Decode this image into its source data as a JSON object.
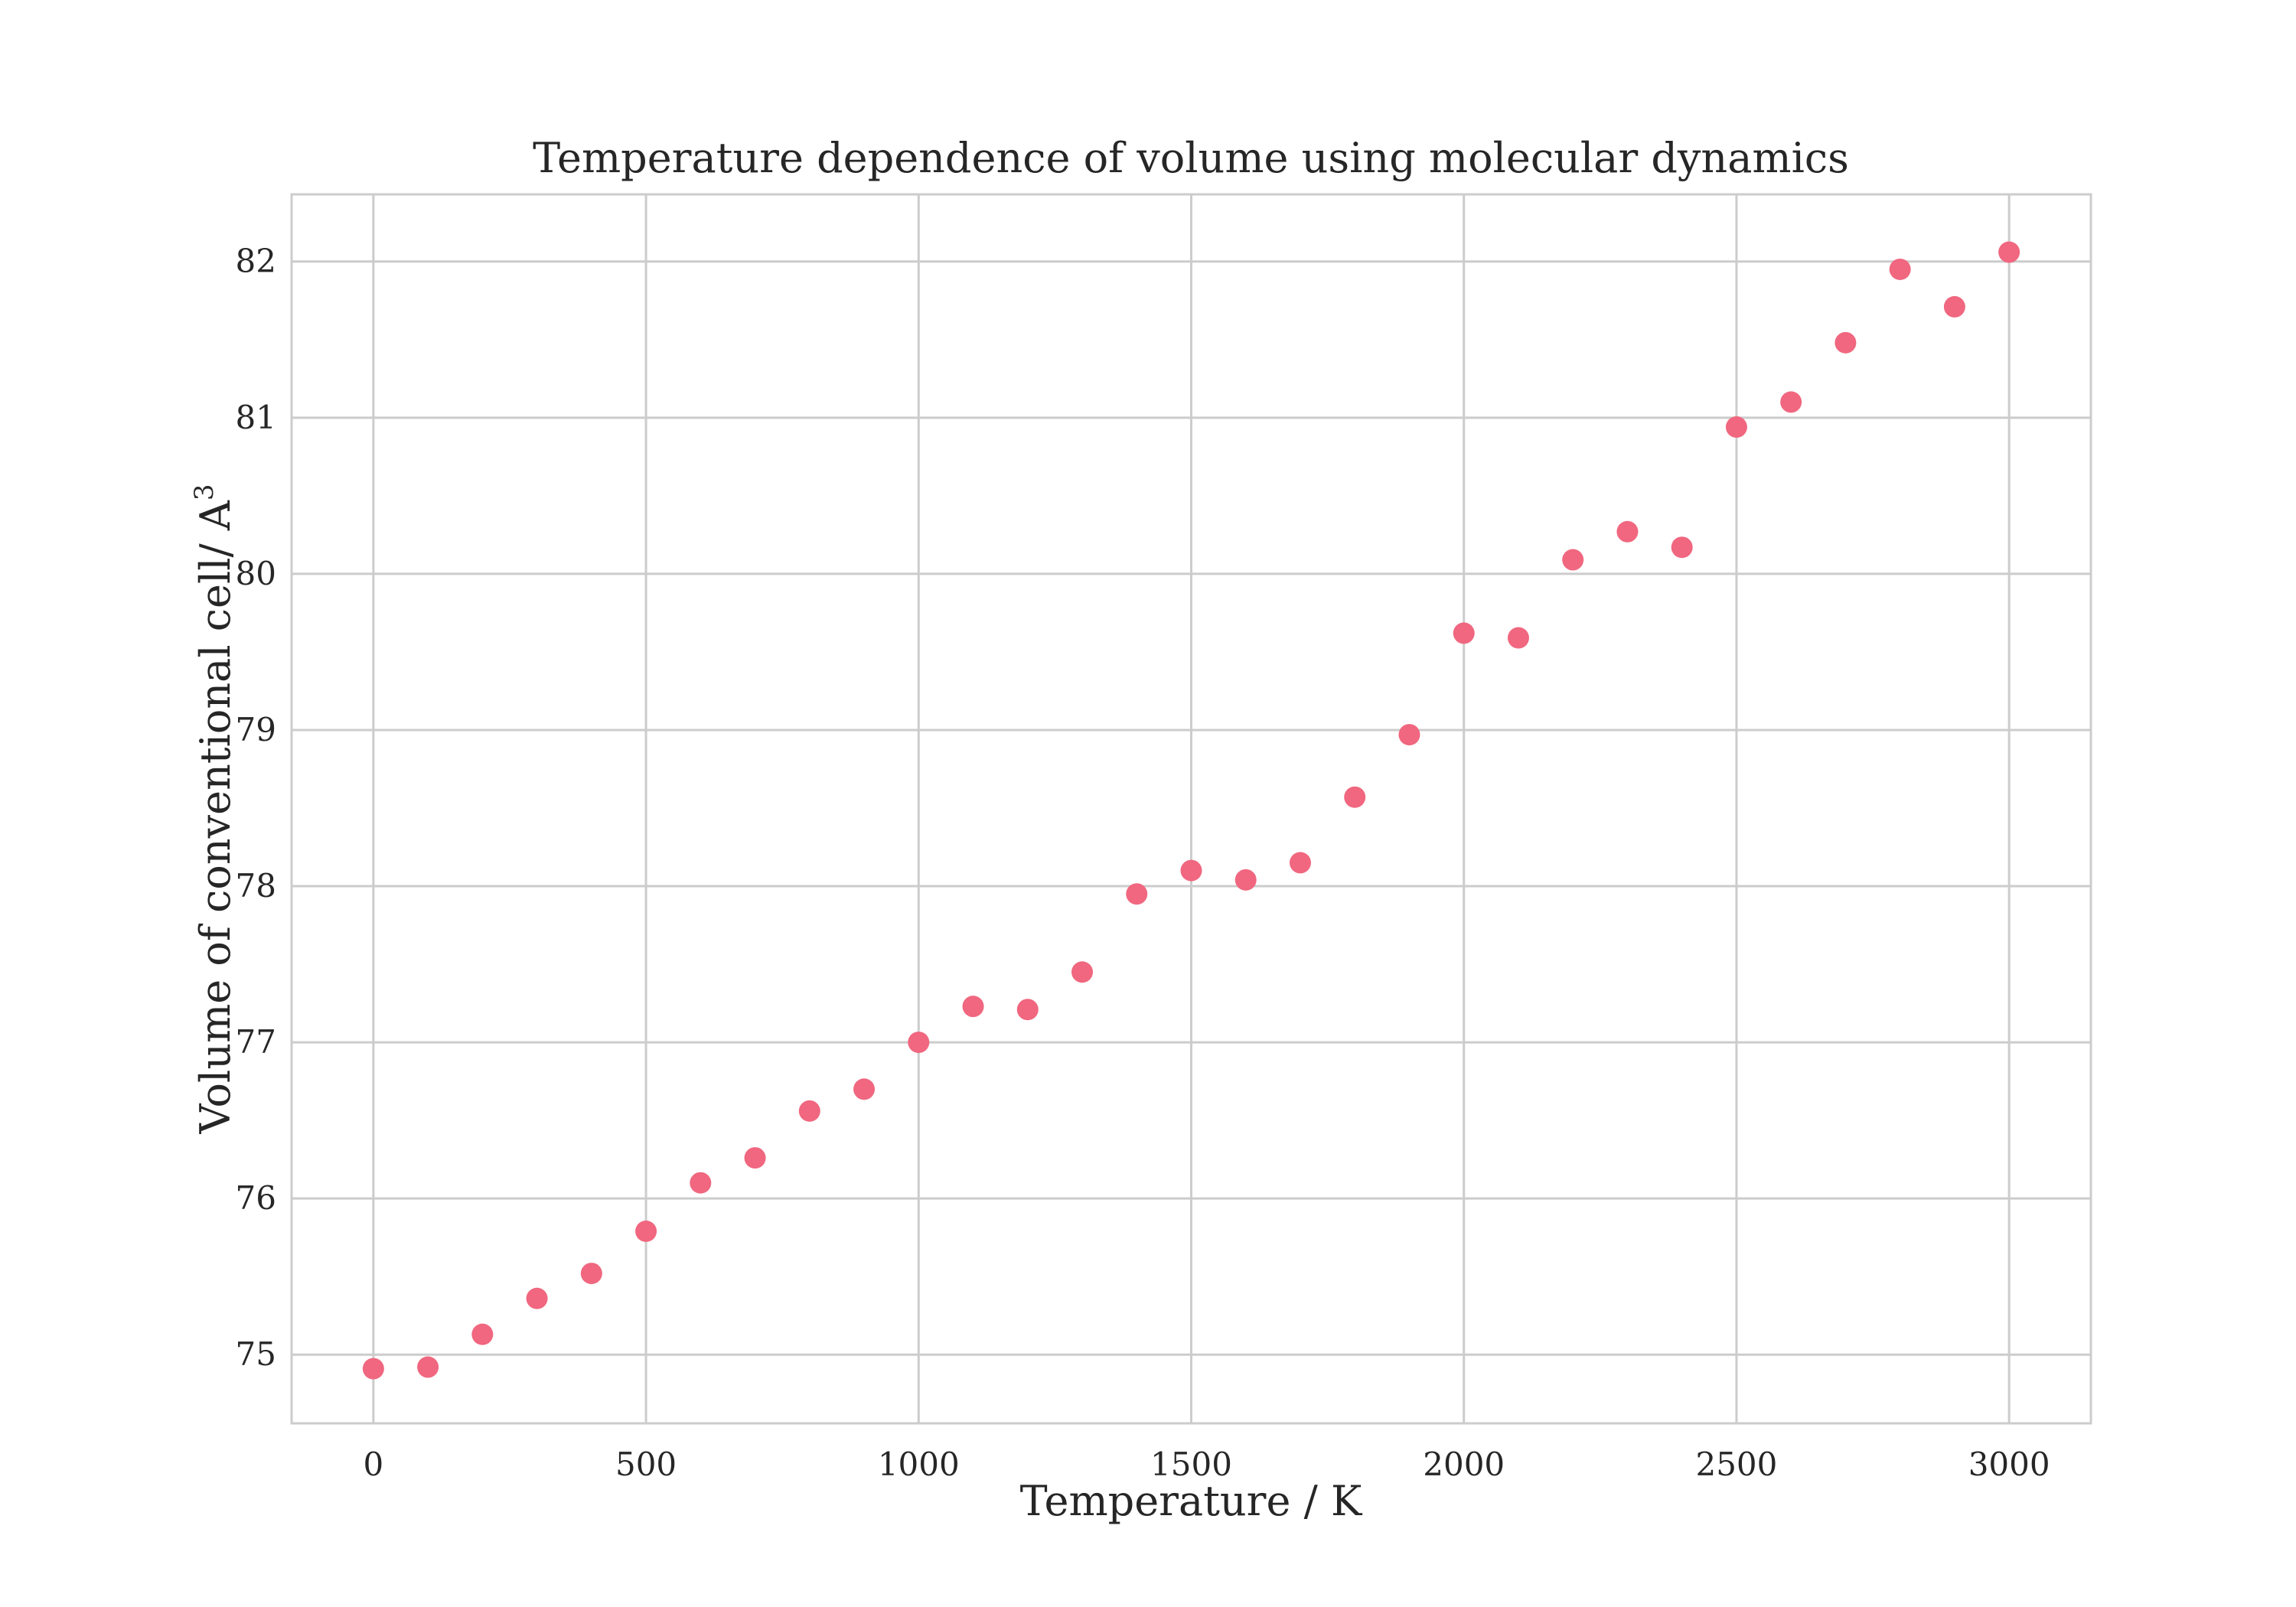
{
  "chart_data": {
    "type": "scatter",
    "title": "Temperature dependence of volume using molecular dynamics",
    "xlabel": "Temperature / K",
    "ylabel": "Volume of conventional cell/ A",
    "ylabel_superscript": "3",
    "xlim": [
      -150,
      3150
    ],
    "ylim": [
      74.56,
      82.43
    ],
    "xticks": [
      0,
      500,
      1000,
      1500,
      2000,
      2500,
      3000
    ],
    "yticks": [
      75,
      76,
      77,
      78,
      79,
      80,
      81,
      82
    ],
    "grid": true,
    "marker_color": "#f0677f",
    "series": [
      {
        "name": "Volume",
        "x": [
          0,
          100,
          200,
          300,
          400,
          500,
          600,
          700,
          800,
          900,
          1000,
          1100,
          1200,
          1300,
          1400,
          1500,
          1600,
          1700,
          1800,
          1900,
          2000,
          2100,
          2200,
          2300,
          2400,
          2500,
          2600,
          2700,
          2800,
          2900,
          3000
        ],
        "y": [
          74.91,
          74.92,
          75.13,
          75.36,
          75.52,
          75.79,
          76.1,
          76.26,
          76.56,
          76.7,
          77.0,
          77.23,
          77.21,
          77.45,
          77.95,
          78.1,
          78.04,
          78.15,
          78.57,
          78.97,
          79.62,
          79.59,
          80.09,
          80.27,
          80.17,
          80.94,
          81.1,
          81.48,
          81.95,
          81.71,
          82.06
        ]
      }
    ]
  }
}
